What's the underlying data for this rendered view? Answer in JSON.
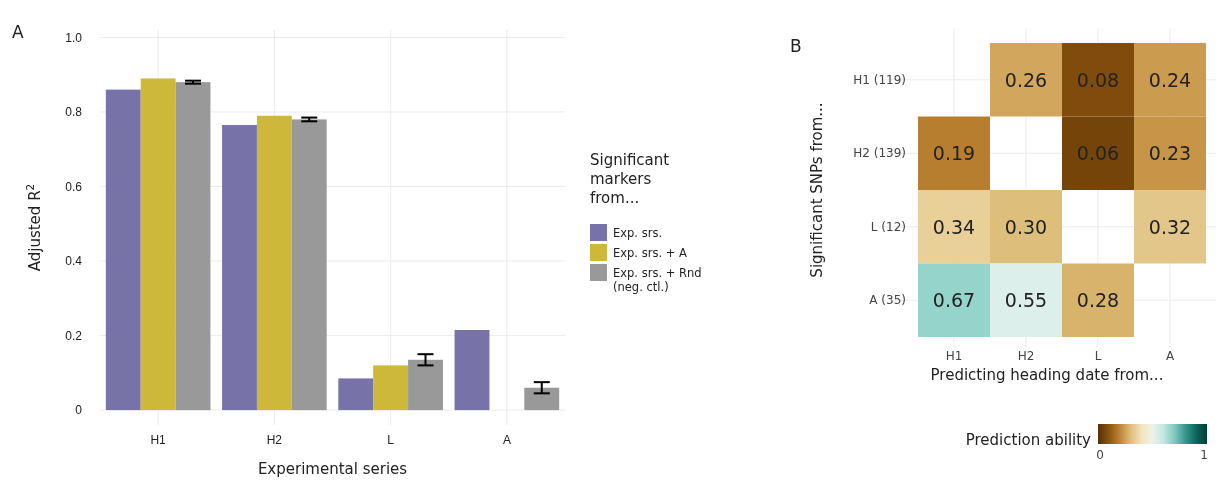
{
  "chart_data": [
    {
      "type": "bar",
      "title": "A",
      "xlabel": "Experimental series",
      "ylabel": "Adjusted R$^{2}$",
      "categories": [
        "H1",
        "H2",
        "L",
        "A"
      ],
      "series": [
        {
          "name": "Exp. srs.",
          "color": "#7773a9",
          "values": [
            0.86,
            0.765,
            0.085,
            0.215
          ]
        },
        {
          "name": "Exp. srs. + A",
          "color": "#cdb83a",
          "values": [
            0.89,
            0.79,
            0.12,
            null
          ]
        },
        {
          "name": "Exp. srs. + Rnd (neg. ctl.)",
          "color": "#999999",
          "values": [
            0.88,
            0.78,
            0.135,
            0.06
          ],
          "errors": [
            0.004,
            0.005,
            0.015,
            0.015
          ]
        }
      ],
      "ylim": [
        -0.04,
        1.02
      ],
      "yticks": [
        0,
        {
          "value": 0.2,
          "label": "0.2"
        },
        {
          "value": 0.4,
          "label": "0.4"
        },
        {
          "value": 0.6,
          "label": "0.6"
        },
        {
          "value": 0.8,
          "label": "0.8"
        },
        {
          "value": 1,
          "label": "1.0"
        }
      ],
      "grid": true,
      "legend": "right",
      "legend_title": "Significant markers from..."
    },
    {
      "type": "heatmap",
      "title": "B",
      "xlabel": "Predicting heading date from...",
      "ylabel": "Significant SNPs from...",
      "categories": [
        "H1",
        "H2",
        "L",
        "A"
      ],
      "y_categories": [
        "H1 (119)",
        "H2 (139)",
        "L (12)",
        "A (35)"
      ],
      "cells": [
        [
          null,
          0.26,
          0.08,
          0.24
        ],
        [
          0.19,
          null,
          0.06,
          0.23
        ],
        [
          0.34,
          0.3,
          null,
          0.32
        ],
        [
          0.67,
          0.55,
          0.28,
          null
        ]
      ],
      "cell_labels": [
        [
          null,
          "0.26",
          "0.08",
          "0.24"
        ],
        [
          "0.19",
          null,
          "0.06",
          "0.23"
        ],
        [
          "0.34",
          "0.30",
          null,
          "0.32"
        ],
        [
          "0.67",
          "0.55",
          "0.28",
          null
        ]
      ],
      "clim": [
        0,
        1
      ],
      "cticks": [
        0,
        1
      ],
      "clabel": "Prediction ability",
      "grid": true
    }
  ]
}
